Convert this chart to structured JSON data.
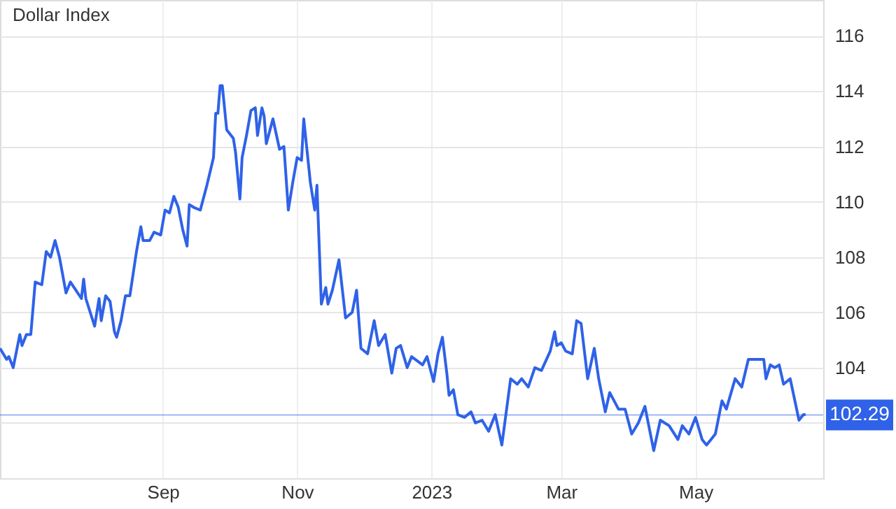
{
  "chart_data": {
    "type": "line",
    "title": "Dollar Index",
    "x": [
      "2022-06-19",
      "2022-06-22",
      "2022-06-23",
      "2022-06-25",
      "2022-06-28",
      "2022-06-29",
      "2022-07-01",
      "2022-07-03",
      "2022-07-05",
      "2022-07-08",
      "2022-07-10",
      "2022-07-12",
      "2022-07-14",
      "2022-07-16",
      "2022-07-19",
      "2022-07-21",
      "2022-07-26",
      "2022-07-27",
      "2022-07-28",
      "2022-08-01",
      "2022-08-03",
      "2022-08-04",
      "2022-08-06",
      "2022-08-08",
      "2022-08-10",
      "2022-08-11",
      "2022-08-13",
      "2022-08-15",
      "2022-08-17",
      "2022-08-20",
      "2022-08-22",
      "2022-08-23",
      "2022-08-26",
      "2022-08-28",
      "2022-08-31",
      "2022-09-02",
      "2022-09-04",
      "2022-09-06",
      "2022-09-08",
      "2022-09-10",
      "2022-09-12",
      "2022-09-13",
      "2022-09-15",
      "2022-09-18",
      "2022-09-21",
      "2022-09-24",
      "2022-09-25",
      "2022-09-26",
      "2022-09-27",
      "2022-09-28",
      "2022-09-30",
      "2022-10-03",
      "2022-10-04",
      "2022-10-06",
      "2022-10-07",
      "2022-10-09",
      "2022-10-11",
      "2022-10-13",
      "2022-10-14",
      "2022-10-16",
      "2022-10-17",
      "2022-10-18",
      "2022-10-21",
      "2022-10-24",
      "2022-10-26",
      "2022-10-28",
      "2022-10-30",
      "2022-11-01",
      "2022-11-03",
      "2022-11-04",
      "2022-11-07",
      "2022-11-09",
      "2022-11-10",
      "2022-11-12",
      "2022-11-14",
      "2022-11-15",
      "2022-11-17",
      "2022-11-20",
      "2022-11-23",
      "2022-11-26",
      "2022-11-28",
      "2022-11-30",
      "2022-12-03",
      "2022-12-06",
      "2022-12-08",
      "2022-12-11",
      "2022-12-14",
      "2022-12-16",
      "2022-12-18",
      "2022-12-21",
      "2022-12-23",
      "2022-12-28",
      "2022-12-30",
      "2023-01-02",
      "2023-01-04",
      "2023-01-06",
      "2023-01-08",
      "2023-01-09",
      "2023-01-11",
      "2023-01-13",
      "2023-01-16",
      "2023-01-19",
      "2023-01-21",
      "2023-01-24",
      "2023-01-27",
      "2023-01-30",
      "2023-02-02",
      "2023-02-06",
      "2023-02-09",
      "2023-02-11",
      "2023-02-14",
      "2023-02-17",
      "2023-02-20",
      "2023-02-24",
      "2023-02-26",
      "2023-02-27",
      "2023-03-01",
      "2023-03-03",
      "2023-03-06",
      "2023-03-08",
      "2023-03-10",
      "2023-03-13",
      "2023-03-16",
      "2023-03-18",
      "2023-03-21",
      "2023-03-23",
      "2023-03-27",
      "2023-03-30",
      "2023-04-02",
      "2023-04-05",
      "2023-04-08",
      "2023-04-12",
      "2023-04-15",
      "2023-04-19",
      "2023-04-23",
      "2023-04-25",
      "2023-04-28",
      "2023-05-01",
      "2023-05-04",
      "2023-05-06",
      "2023-05-10",
      "2023-05-13",
      "2023-05-15",
      "2023-05-19",
      "2023-05-22",
      "2023-05-25",
      "2023-05-29",
      "2023-06-01",
      "2023-06-02",
      "2023-06-04",
      "2023-06-06",
      "2023-06-08",
      "2023-06-10",
      "2023-06-13",
      "2023-06-17",
      "2023-06-19",
      "2023-06-20"
    ],
    "series": [
      {
        "color": "#2f62e8",
        "values": [
          104.7,
          104.3,
          104.4,
          104.0,
          105.2,
          104.8,
          105.2,
          105.2,
          107.1,
          107.0,
          108.2,
          108.0,
          108.6,
          108.0,
          106.7,
          107.1,
          106.5,
          107.2,
          106.5,
          105.5,
          106.5,
          105.7,
          106.6,
          106.4,
          105.3,
          105.1,
          105.7,
          106.6,
          106.6,
          108.2,
          109.1,
          108.6,
          108.6,
          108.9,
          108.8,
          109.7,
          109.6,
          110.2,
          109.8,
          109.0,
          108.4,
          109.9,
          109.8,
          109.7,
          110.6,
          111.6,
          113.2,
          113.2,
          114.2,
          114.2,
          112.6,
          112.3,
          111.8,
          110.1,
          111.6,
          112.4,
          113.3,
          113.4,
          112.4,
          113.4,
          113.1,
          112.1,
          113.0,
          111.9,
          112.0,
          109.7,
          110.7,
          111.6,
          111.5,
          113.0,
          110.7,
          109.7,
          110.6,
          106.3,
          106.9,
          106.3,
          106.8,
          107.9,
          105.8,
          106.0,
          106.8,
          104.7,
          104.5,
          105.7,
          104.8,
          105.2,
          103.8,
          104.7,
          104.8,
          104.0,
          104.4,
          104.1,
          104.4,
          103.5,
          104.5,
          105.1,
          103.8,
          103.0,
          103.2,
          102.3,
          102.2,
          102.4,
          102.0,
          102.1,
          101.7,
          102.3,
          101.2,
          103.6,
          103.4,
          103.6,
          103.3,
          104.0,
          103.9,
          104.6,
          105.3,
          104.8,
          104.9,
          104.6,
          104.5,
          105.7,
          105.6,
          103.6,
          104.7,
          103.6,
          102.4,
          103.1,
          102.5,
          102.5,
          101.6,
          102.0,
          102.6,
          101.0,
          102.1,
          101.9,
          101.4,
          101.9,
          101.6,
          102.2,
          101.4,
          101.2,
          101.6,
          102.8,
          102.5,
          103.6,
          103.3,
          104.3,
          104.3,
          104.3,
          103.6,
          104.1,
          104.0,
          104.1,
          103.4,
          103.6,
          102.1,
          102.3,
          102.3
        ]
      }
    ],
    "xlim": [
      "2022-06-19",
      "2023-06-28"
    ],
    "xticks": [
      {
        "value": "2022-09-01",
        "label": "Sep"
      },
      {
        "value": "2022-11-01",
        "label": "Nov"
      },
      {
        "value": "2023-01-01",
        "label": "2023"
      },
      {
        "value": "2023-03-01",
        "label": "Mar"
      },
      {
        "value": "2023-05-01",
        "label": "May"
      }
    ],
    "ylim": [
      100,
      117.3
    ],
    "yticks": [
      {
        "value": 102,
        "label": null
      },
      104,
      106,
      108,
      110,
      112,
      114,
      116
    ],
    "ref_lines": [
      {
        "axis": "y",
        "value": 102.29,
        "label": "102.29",
        "color": "#2f62e8"
      }
    ],
    "grid": true
  }
}
